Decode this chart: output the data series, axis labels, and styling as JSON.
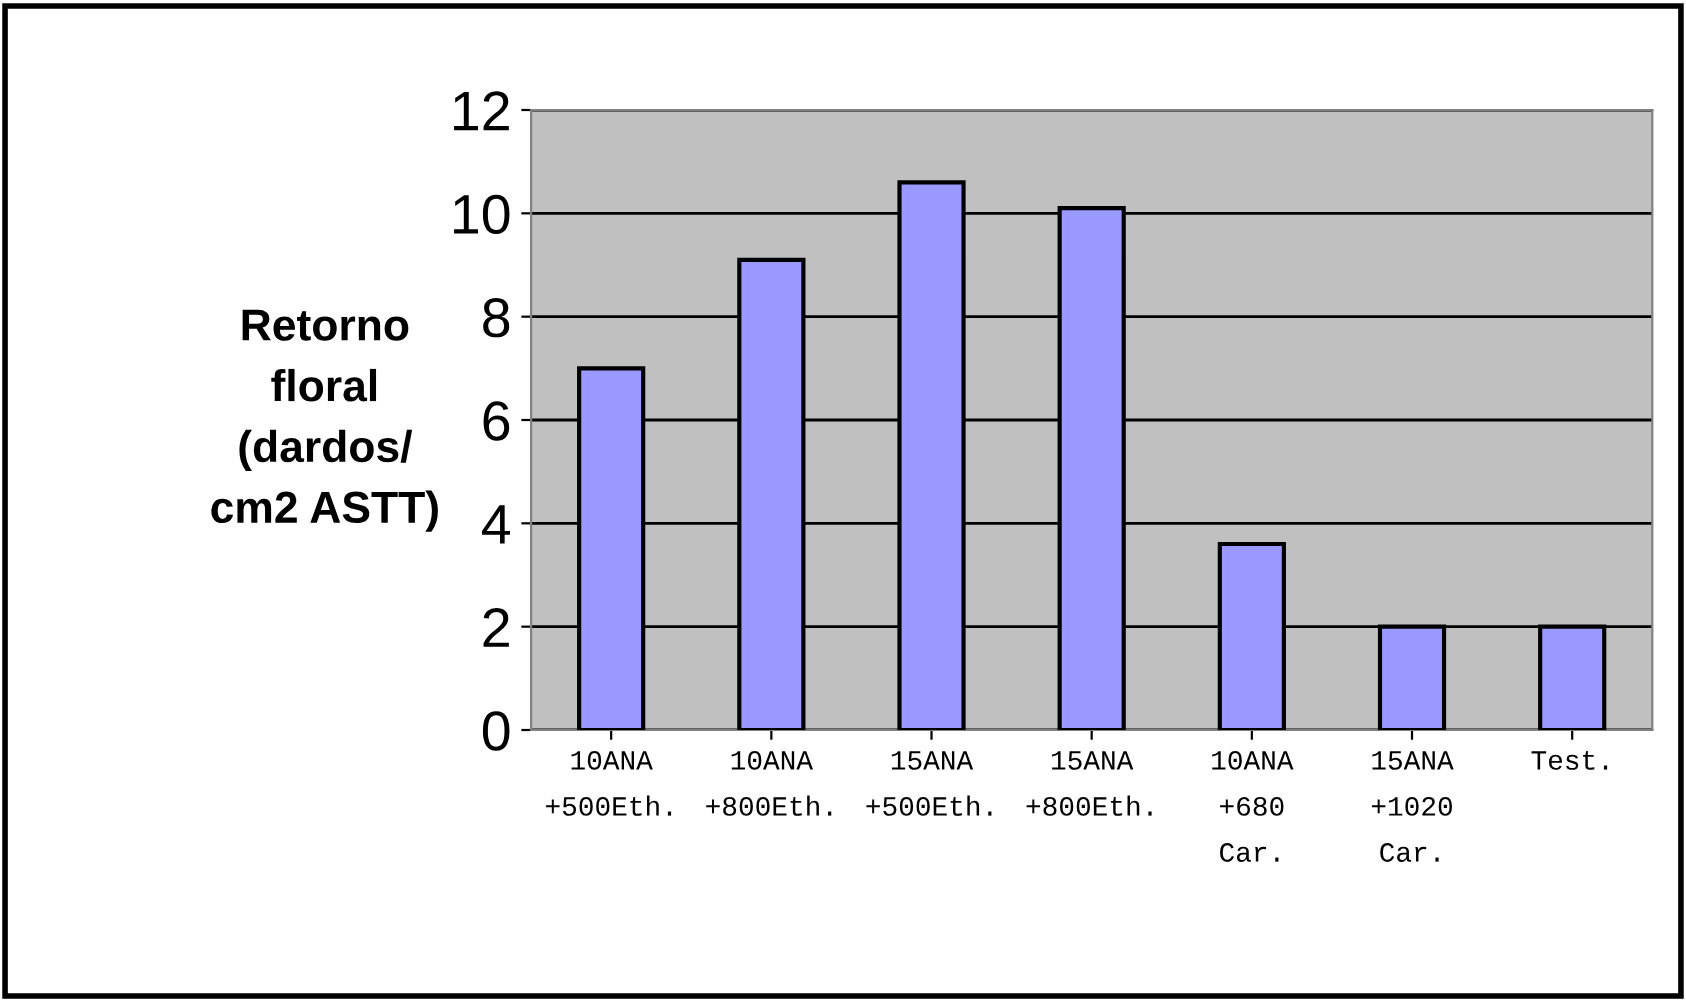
{
  "chart_data": {
    "type": "bar",
    "ylabel": "Retorno\nfloral\n(dardos/\ncm2 ASTT)",
    "categories": [
      "10ANA\n+500Eth.",
      "10ANA\n+800Eth.",
      "15ANA\n+500Eth.",
      "15ANA\n+800Eth.",
      "10ANA\n+680\nCar.",
      "15ANA\n+1020\nCar.",
      "Test."
    ],
    "values": [
      7,
      9.1,
      10.6,
      10.1,
      3.6,
      2,
      2
    ],
    "color": "#9999ff",
    "ylim": [
      0,
      12
    ],
    "yticks": [
      0,
      2,
      4,
      6,
      8,
      10,
      12
    ],
    "grid": "y",
    "legend": false
  }
}
